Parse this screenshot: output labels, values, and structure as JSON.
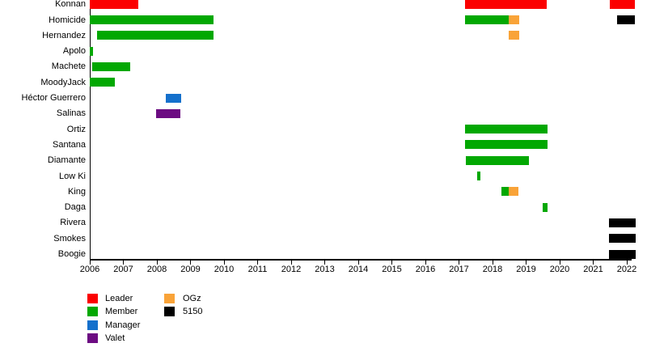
{
  "chart_data": {
    "type": "timeline",
    "title": "",
    "x_axis": {
      "unit": "year",
      "min": 2006,
      "max": 2022.3,
      "ticks": [
        2006,
        2007,
        2008,
        2009,
        2010,
        2011,
        2012,
        2013,
        2014,
        2015,
        2016,
        2017,
        2018,
        2019,
        2020,
        2021,
        2022
      ]
    },
    "legend": {
      "items": [
        {
          "label": "Leader",
          "role": "leader",
          "color": "#fb0000",
          "column": 1
        },
        {
          "label": "Member",
          "role": "member",
          "color": "#02a802",
          "column": 1
        },
        {
          "label": "Manager",
          "role": "manager",
          "color": "#1470cc",
          "column": 1
        },
        {
          "label": "Valet",
          "role": "valet",
          "color": "#6c0c82",
          "column": 1
        },
        {
          "label": "OGz",
          "role": "ogz",
          "color": "#f9a338",
          "column": 2
        },
        {
          "label": "5150",
          "role": "fiveonefifty",
          "color": "#000000",
          "column": 2
        }
      ]
    },
    "rows": [
      {
        "name": "Konnan",
        "bars": [
          {
            "role": "leader",
            "start": 2006.0,
            "end": 2007.45
          },
          {
            "role": "leader",
            "start": 2017.18,
            "end": 2019.61
          },
          {
            "role": "leader",
            "start": 2021.49,
            "end": 2022.25
          }
        ]
      },
      {
        "name": "Homicide",
        "bars": [
          {
            "role": "member",
            "start": 2006.0,
            "end": 2009.69
          },
          {
            "role": "member",
            "start": 2017.18,
            "end": 2018.48
          },
          {
            "role": "ogz",
            "start": 2018.48,
            "end": 2018.8
          },
          {
            "role": "fiveonefifty",
            "start": 2021.71,
            "end": 2022.25
          }
        ]
      },
      {
        "name": "Hernandez",
        "bars": [
          {
            "role": "member",
            "start": 2006.22,
            "end": 2009.69
          },
          {
            "role": "ogz",
            "start": 2018.48,
            "end": 2018.8
          }
        ]
      },
      {
        "name": "Apolo",
        "bars": [
          {
            "role": "member",
            "start": 2006.0,
            "end": 2006.1
          }
        ]
      },
      {
        "name": "Machete",
        "bars": [
          {
            "role": "member",
            "start": 2006.07,
            "end": 2007.2
          }
        ]
      },
      {
        "name": "MoodyJack",
        "bars": [
          {
            "role": "member",
            "start": 2006.0,
            "end": 2006.75
          }
        ]
      },
      {
        "name": "Héctor Guerrero",
        "bars": [
          {
            "role": "manager",
            "start": 2008.27,
            "end": 2008.72
          }
        ]
      },
      {
        "name": "Salinas",
        "bars": [
          {
            "role": "valet",
            "start": 2007.98,
            "end": 2008.7
          }
        ]
      },
      {
        "name": "Ortiz",
        "bars": [
          {
            "role": "member",
            "start": 2017.18,
            "end": 2019.64
          }
        ]
      },
      {
        "name": "Santana",
        "bars": [
          {
            "role": "member",
            "start": 2017.18,
            "end": 2019.64
          }
        ]
      },
      {
        "name": "Diamante",
        "bars": [
          {
            "role": "member",
            "start": 2017.2,
            "end": 2019.08
          }
        ]
      },
      {
        "name": "Low Ki",
        "bars": [
          {
            "role": "member",
            "start": 2017.54,
            "end": 2017.64
          }
        ]
      },
      {
        "name": "King",
        "bars": [
          {
            "role": "member",
            "start": 2018.26,
            "end": 2018.48
          },
          {
            "role": "ogz",
            "start": 2018.48,
            "end": 2018.77
          }
        ]
      },
      {
        "name": "Daga",
        "bars": [
          {
            "role": "member",
            "start": 2019.49,
            "end": 2019.64
          }
        ]
      },
      {
        "name": "Rivera",
        "bars": [
          {
            "role": "fiveonefifty",
            "start": 2021.47,
            "end": 2022.27
          }
        ]
      },
      {
        "name": "Smokes",
        "bars": [
          {
            "role": "fiveonefifty",
            "start": 2021.47,
            "end": 2022.27
          }
        ]
      },
      {
        "name": "Boogie",
        "bars": [
          {
            "role": "fiveonefifty",
            "start": 2021.47,
            "end": 2022.27
          }
        ]
      }
    ],
    "colors": {
      "background": "#ffffff",
      "axis": "#000000",
      "text": "#000000"
    }
  }
}
